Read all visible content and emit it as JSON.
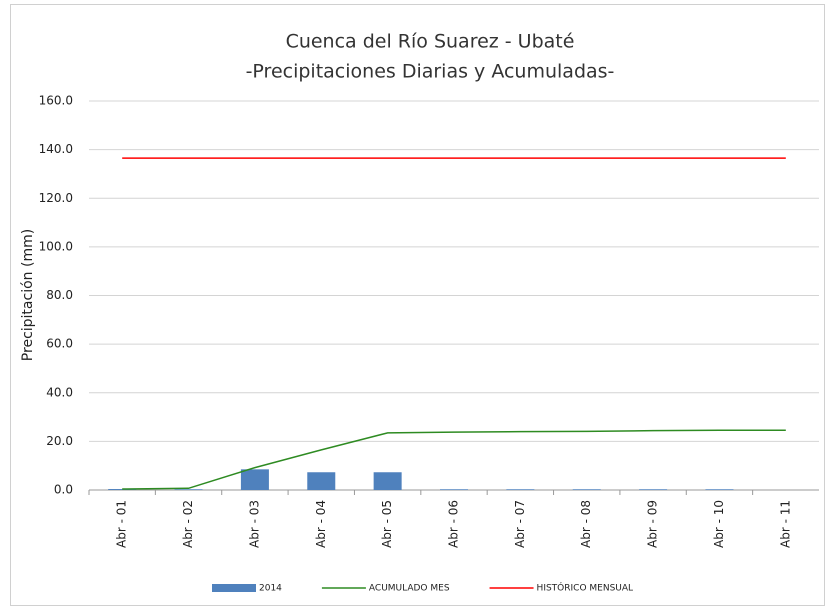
{
  "chart_data": {
    "type": "bar_line",
    "title": "Cuenca del Río Suarez - Ubaté",
    "subtitle": "-Precipitaciones Diarias y Acumuladas-",
    "y_label": "Precipitación (mm)",
    "categories": [
      "Abr - 01",
      "Abr - 02",
      "Abr - 03",
      "Abr - 04",
      "Abr - 05",
      "Abr - 06",
      "Abr - 07",
      "Abr - 08",
      "Abr - 09",
      "Abr - 10",
      "Abr - 11"
    ],
    "series": [
      {
        "name": "2014",
        "kind": "bar",
        "color": "#4f81bd",
        "values": [
          0.4,
          0.3,
          8.5,
          7.3,
          7.3,
          0.3,
          0.3,
          0.3,
          0.3,
          0.3,
          0
        ]
      },
      {
        "name": "ACUMULADO MES",
        "kind": "line",
        "color": "#2e8b22",
        "values": [
          0.4,
          0.7,
          9.2,
          16.5,
          23.5,
          23.8,
          24.0,
          24.1,
          24.4,
          24.6,
          24.6
        ]
      },
      {
        "name": "HISTÓRICO MENSUAL",
        "kind": "line",
        "color": "#ff0000",
        "values": [
          136.5,
          136.5,
          136.5,
          136.5,
          136.5,
          136.5,
          136.5,
          136.5,
          136.5,
          136.5,
          136.5
        ]
      }
    ],
    "ylim": [
      0,
      160
    ],
    "yticks": [
      {
        "value": 0,
        "label": "0.0"
      },
      {
        "value": 20,
        "label": "20.0"
      },
      {
        "value": 40,
        "label": "40.0"
      },
      {
        "value": 60,
        "label": "60.0"
      },
      {
        "value": 80,
        "label": "80.0"
      },
      {
        "value": 100,
        "label": "100.0"
      },
      {
        "value": 120,
        "label": "120.0"
      },
      {
        "value": 140,
        "label": "140.0"
      },
      {
        "value": 160,
        "label": "160.0"
      }
    ],
    "grid": true,
    "legend": "bottom"
  }
}
